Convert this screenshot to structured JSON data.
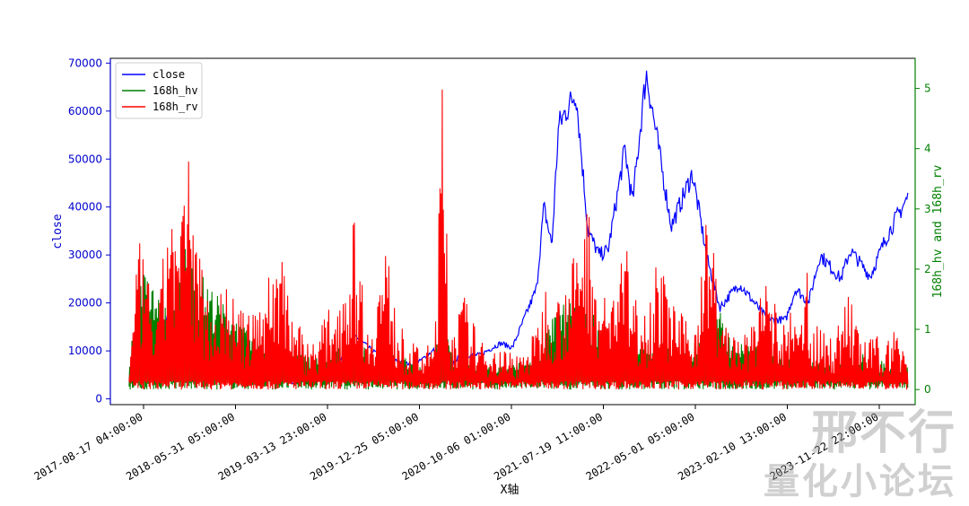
{
  "chart_data": {
    "type": "line",
    "title": "",
    "xlabel": "X轴",
    "ylabel_left": "close",
    "ylabel_right": "168h_hv and 168h_rv",
    "x_ticks": [
      "2017-08-17 04:00:00",
      "2018-05-31 05:00:00",
      "2019-03-13 23:00:00",
      "2019-12-25 05:00:00",
      "2020-10-06 01:00:00",
      "2021-07-19 11:00:00",
      "2022-05-01 05:00:00",
      "2023-02-10 13:00:00",
      "2023-11-22 22:00:00"
    ],
    "y_left_ticks": [
      0,
      10000,
      20000,
      30000,
      40000,
      50000,
      60000,
      70000
    ],
    "y_right_ticks": [
      0,
      1,
      2,
      3,
      4,
      5
    ],
    "ylim_left": [
      -1200,
      71000
    ],
    "ylim_right": [
      -0.25,
      5.5
    ],
    "legend_position": "upper-left",
    "grid": false,
    "colors": {
      "close": "#0000ff",
      "168h_hv": "#008000",
      "168h_rv": "#ff0000",
      "left_axis": "#0000cc",
      "right_axis": "#008000"
    },
    "series": [
      {
        "name": "close",
        "axis": "left",
        "x": [
          "2017-08-17",
          "2017-10-15",
          "2017-12-17",
          "2018-01-15",
          "2018-02-06",
          "2018-04-01",
          "2018-06-15",
          "2018-09-01",
          "2018-11-20",
          "2018-12-15",
          "2019-02-15",
          "2019-04-15",
          "2019-06-26",
          "2019-08-15",
          "2019-10-01",
          "2019-12-18",
          "2020-02-14",
          "2020-03-13",
          "2020-05-01",
          "2020-07-01",
          "2020-09-01",
          "2020-10-06",
          "2020-12-17",
          "2021-01-08",
          "2021-02-01",
          "2021-02-21",
          "2021-04-14",
          "2021-05-20",
          "2021-06-22",
          "2021-07-19",
          "2021-09-07",
          "2021-09-30",
          "2021-11-10",
          "2022-01-24",
          "2022-03-28",
          "2022-05-12",
          "2022-06-18",
          "2022-08-15",
          "2022-11-09",
          "2023-01-01",
          "2023-01-31",
          "2023-03-10",
          "2023-04-14",
          "2023-06-15",
          "2023-07-13",
          "2023-09-11",
          "2023-10-24",
          "2023-11-22",
          "2024-01-01"
        ],
        "y": [
          4300,
          5600,
          19000,
          13000,
          7000,
          8500,
          6500,
          6500,
          5600,
          3300,
          3600,
          5200,
          13000,
          10000,
          8300,
          7000,
          10200,
          4800,
          9000,
          9200,
          11600,
          10700,
          23000,
          40000,
          32000,
          57000,
          64000,
          35000,
          30000,
          31000,
          52000,
          41000,
          68000,
          36000,
          47000,
          29000,
          19000,
          24000,
          16500,
          16500,
          23000,
          20000,
          30000,
          25000,
          31000,
          25500,
          33000,
          37000,
          42000
        ]
      },
      {
        "name": "168h_hv",
        "axis": "right",
        "x": [
          "2017-08-17",
          "2017-09-15",
          "2017-12-20",
          "2018-02-06",
          "2018-03-15",
          "2018-06-01",
          "2018-09-01",
          "2018-11-25",
          "2019-01-15",
          "2019-04-01",
          "2019-06-27",
          "2019-08-01",
          "2019-10-26",
          "2019-12-01",
          "2020-01-15",
          "2020-03-13",
          "2020-04-15",
          "2020-07-01",
          "2020-09-01",
          "2020-12-01",
          "2021-01-10",
          "2021-02-20",
          "2021-04-18",
          "2021-05-19",
          "2021-06-15",
          "2021-07-19",
          "2021-09-07",
          "2021-11-01",
          "2021-12-04",
          "2022-01-24",
          "2022-03-01",
          "2022-05-12",
          "2022-06-18",
          "2022-08-01",
          "2022-11-09",
          "2023-01-15",
          "2023-03-13",
          "2023-06-01",
          "2023-08-17",
          "2023-10-01",
          "2023-11-22",
          "2024-01-01"
        ],
        "y": [
          0.3,
          2.1,
          1.3,
          2.6,
          2.0,
          1.4,
          0.8,
          0.7,
          0.6,
          0.5,
          1.0,
          0.6,
          0.6,
          0.5,
          0.4,
          1.1,
          0.5,
          0.4,
          0.4,
          0.5,
          0.9,
          1.4,
          1.6,
          1.4,
          1.2,
          0.9,
          0.8,
          0.9,
          0.6,
          0.8,
          0.6,
          1.0,
          1.3,
          0.8,
          0.7,
          0.6,
          0.5,
          0.4,
          0.6,
          0.5,
          0.5,
          0.4
        ]
      },
      {
        "name": "168h_rv",
        "axis": "right",
        "x": [
          "2017-08-17",
          "2017-09-15",
          "2017-11-12",
          "2017-12-17",
          "2018-01-16",
          "2018-02-06",
          "2018-03-01",
          "2018-04-15",
          "2018-06-01",
          "2018-08-01",
          "2018-09-01",
          "2018-11-20",
          "2018-12-15",
          "2019-01-15",
          "2019-02-15",
          "2019-04-02",
          "2019-05-15",
          "2019-06-26",
          "2019-08-01",
          "2019-09-24",
          "2019-10-26",
          "2019-12-01",
          "2020-01-15",
          "2020-02-15",
          "2020-03-13",
          "2020-04-01",
          "2020-05-15",
          "2020-07-01",
          "2020-09-01",
          "2020-11-01",
          "2020-12-15",
          "2021-01-11",
          "2021-02-23",
          "2021-03-15",
          "2021-04-18",
          "2021-05-19",
          "2021-06-22",
          "2021-07-19",
          "2021-09-07",
          "2021-10-01",
          "2021-11-15",
          "2021-12-04",
          "2022-01-24",
          "2022-03-01",
          "2022-04-01",
          "2022-05-09",
          "2022-05-12",
          "2022-06-18",
          "2022-07-15",
          "2022-09-13",
          "2022-11-09",
          "2022-12-15",
          "2023-01-14",
          "2023-02-15",
          "2023-03-10",
          "2023-03-13",
          "2023-04-15",
          "2023-06-01",
          "2023-06-30",
          "2023-08-17",
          "2023-10-01",
          "2023-10-24",
          "2023-11-22",
          "2024-01-01"
        ],
        "y": [
          0.3,
          2.5,
          1.2,
          3.6,
          2.5,
          4.2,
          2.8,
          1.5,
          1.8,
          1.2,
          1.4,
          2.6,
          1.5,
          1.0,
          0.8,
          1.3,
          1.8,
          3.0,
          1.0,
          2.5,
          1.2,
          0.8,
          0.7,
          0.8,
          5.6,
          1.0,
          1.6,
          0.8,
          0.7,
          0.6,
          1.0,
          1.8,
          1.6,
          1.9,
          2.4,
          3.3,
          1.7,
          1.5,
          2.6,
          1.6,
          1.4,
          2.3,
          1.6,
          1.2,
          1.0,
          3.0,
          3.4,
          1.4,
          1.0,
          0.9,
          2.0,
          1.0,
          1.3,
          1.0,
          2.5,
          1.2,
          1.0,
          0.9,
          1.8,
          0.8,
          0.9,
          0.7,
          1.1,
          0.6
        ]
      }
    ]
  },
  "watermark": {
    "line1": "邢不行",
    "line2": "量化小论坛"
  }
}
